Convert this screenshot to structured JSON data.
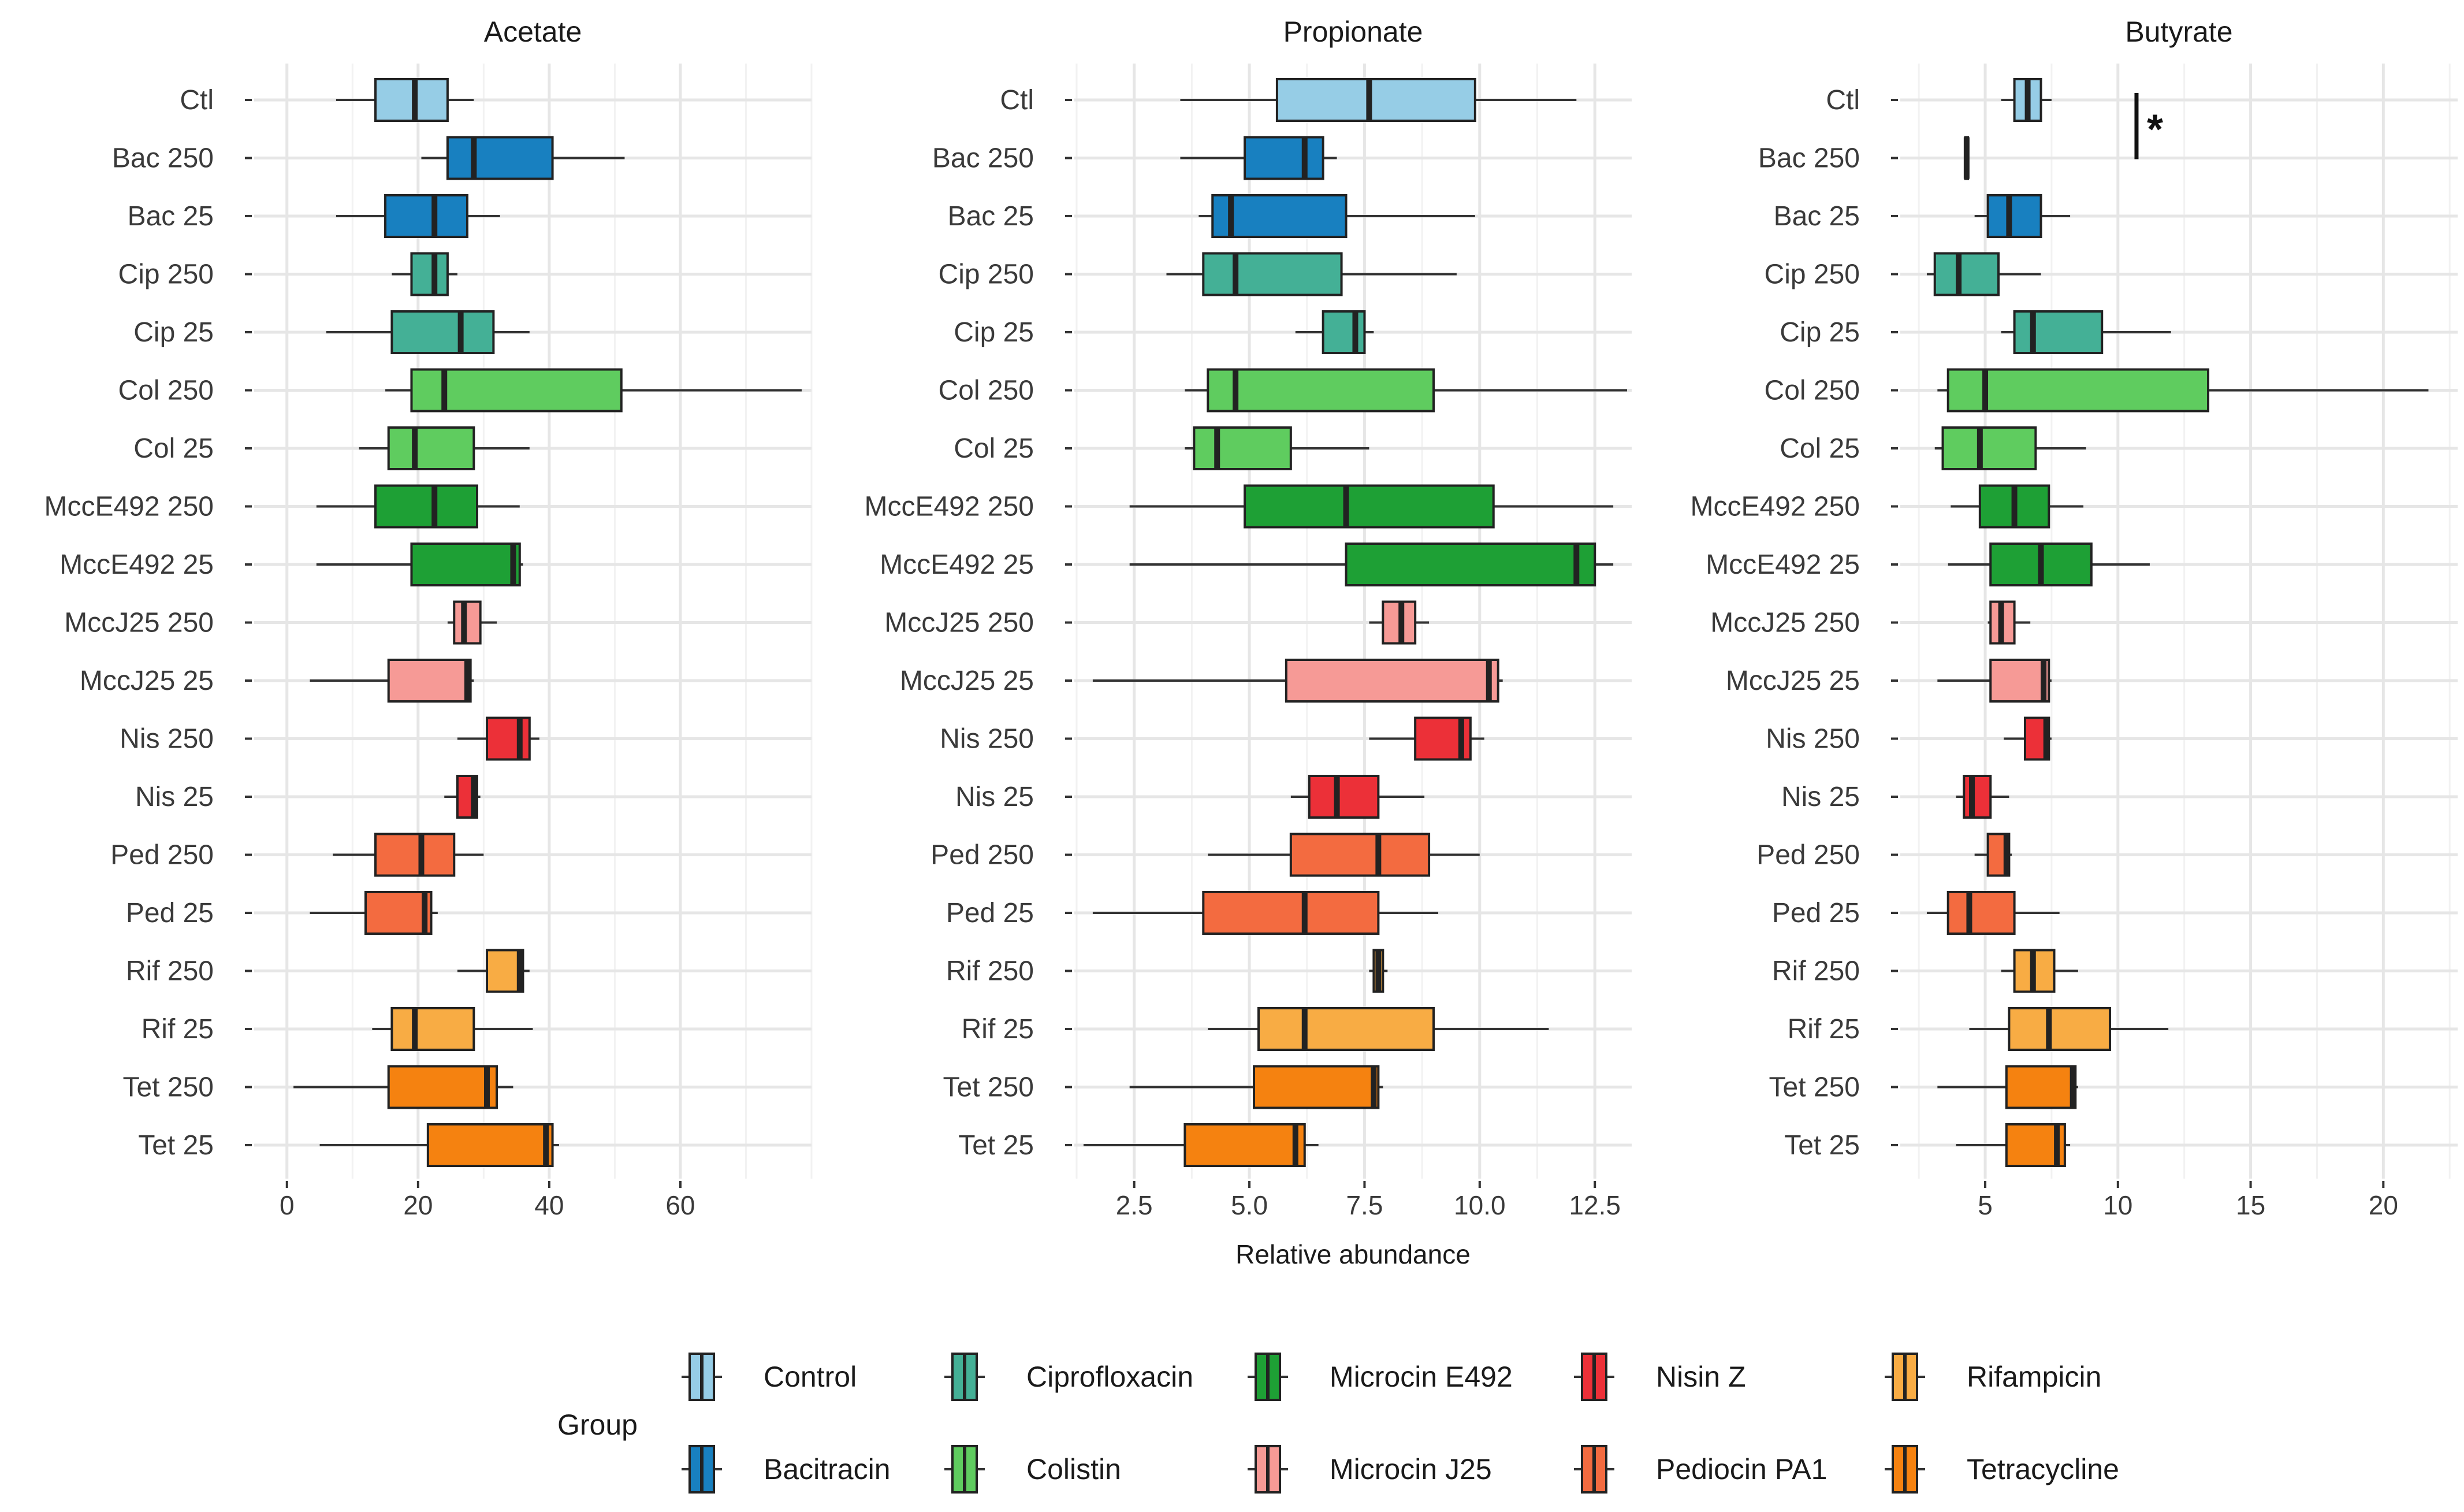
{
  "chart_data": [
    {
      "type": "boxplot",
      "title": "Acetate",
      "xlim": [
        -5,
        80
      ],
      "xticks": [
        0,
        20,
        40,
        60
      ],
      "xticklabels": [
        "0",
        "20",
        "40",
        "60"
      ],
      "categories": [
        "Ctl",
        "Bac 250",
        "Bac 25",
        "Cip 250",
        "Cip 25",
        "Col 250",
        "Col 25",
        "MccE492 250",
        "MccE492 25",
        "MccJ25 250",
        "MccJ25 25",
        "Nis 250",
        "Nis 25",
        "Ped 250",
        "Ped 25",
        "Rif 250",
        "Rif 25",
        "Tet 250",
        "Tet 25"
      ],
      "groups": [
        "Control",
        "Bacitracin",
        "Bacitracin",
        "Ciprofloxacin",
        "Ciprofloxacin",
        "Colistin",
        "Colistin",
        "Microcin E492",
        "Microcin E492",
        "Microcin J25",
        "Microcin J25",
        "Nisin Z",
        "Nisin Z",
        "Pediocin PA1",
        "Pediocin PA1",
        "Rifampicin",
        "Rifampicin",
        "Tetracycline",
        "Tetracycline"
      ],
      "boxes": [
        {
          "min": 7.5,
          "q1": 13.5,
          "median": 19.5,
          "q3": 24.5,
          "max": 28.5
        },
        {
          "min": 20.5,
          "q1": 24.5,
          "median": 28.5,
          "q3": 40.5,
          "max": 51.5
        },
        {
          "min": 7.5,
          "q1": 15,
          "median": 22.5,
          "q3": 27.5,
          "max": 32.5
        },
        {
          "min": 16,
          "q1": 19,
          "median": 22.5,
          "q3": 24.5,
          "max": 26
        },
        {
          "min": 6,
          "q1": 16,
          "median": 26.5,
          "q3": 31.5,
          "max": 37
        },
        {
          "min": 15,
          "q1": 19,
          "median": 24,
          "q3": 51,
          "max": 78.5
        },
        {
          "min": 11,
          "q1": 15.5,
          "median": 19.5,
          "q3": 28.5,
          "max": 37
        },
        {
          "min": 4.5,
          "q1": 13.5,
          "median": 22.5,
          "q3": 29,
          "max": 35.5
        },
        {
          "min": 4.5,
          "q1": 19,
          "median": 34.5,
          "q3": 35.5,
          "max": 36
        },
        {
          "min": 24.5,
          "q1": 25.5,
          "median": 27,
          "q3": 29.5,
          "max": 32
        },
        {
          "min": 3.5,
          "q1": 15.5,
          "median": 27.5,
          "q3": 28,
          "max": 28.5
        },
        {
          "min": 26,
          "q1": 30.5,
          "median": 35.5,
          "q3": 37,
          "max": 38.5
        },
        {
          "min": 24,
          "q1": 26,
          "median": 28.5,
          "q3": 29,
          "max": 29.5
        },
        {
          "min": 7,
          "q1": 13.5,
          "median": 20.5,
          "q3": 25.5,
          "max": 30
        },
        {
          "min": 3.5,
          "q1": 12,
          "median": 21,
          "q3": 22,
          "max": 23
        },
        {
          "min": 26,
          "q1": 30.5,
          "median": 35.5,
          "q3": 36,
          "max": 37
        },
        {
          "min": 13,
          "q1": 16,
          "median": 19.5,
          "q3": 28.5,
          "max": 37.5
        },
        {
          "min": 1,
          "q1": 15.5,
          "median": 30.5,
          "q3": 32,
          "max": 34.5
        },
        {
          "min": 5,
          "q1": 21.5,
          "median": 39.5,
          "q3": 40.5,
          "max": 41.5
        }
      ]
    },
    {
      "type": "boxplot",
      "title": "Propionate",
      "xlabel": "Relative abundance",
      "xlim": [
        1.2,
        13.3
      ],
      "xticks": [
        2.5,
        5.0,
        7.5,
        10.0,
        12.5
      ],
      "xticklabels": [
        "2.5",
        "5.0",
        "7.5",
        "10.0",
        "12.5"
      ],
      "categories": [
        "Ctl",
        "Bac 250",
        "Bac 25",
        "Cip 250",
        "Cip 25",
        "Col 250",
        "Col 25",
        "MccE492 250",
        "MccE492 25",
        "MccJ25 250",
        "MccJ25 25",
        "Nis 250",
        "Nis 25",
        "Ped 250",
        "Ped 25",
        "Rif 250",
        "Rif 25",
        "Tet 250",
        "Tet 25"
      ],
      "groups": [
        "Control",
        "Bacitracin",
        "Bacitracin",
        "Ciprofloxacin",
        "Ciprofloxacin",
        "Colistin",
        "Colistin",
        "Microcin E492",
        "Microcin E492",
        "Microcin J25",
        "Microcin J25",
        "Nisin Z",
        "Nisin Z",
        "Pediocin PA1",
        "Pediocin PA1",
        "Rifampicin",
        "Rifampicin",
        "Tetracycline",
        "Tetracycline"
      ],
      "boxes": [
        {
          "min": 3.5,
          "q1": 5.6,
          "median": 7.6,
          "q3": 9.9,
          "max": 12.1
        },
        {
          "min": 3.5,
          "q1": 4.9,
          "median": 6.2,
          "q3": 6.6,
          "max": 6.9
        },
        {
          "min": 3.9,
          "q1": 4.2,
          "median": 4.6,
          "q3": 7.1,
          "max": 9.9
        },
        {
          "min": 3.2,
          "q1": 4.0,
          "median": 4.7,
          "q3": 7.0,
          "max": 9.5
        },
        {
          "min": 6.0,
          "q1": 6.6,
          "median": 7.3,
          "q3": 7.5,
          "max": 7.7
        },
        {
          "min": 3.6,
          "q1": 4.1,
          "median": 4.7,
          "q3": 9.0,
          "max": 13.2
        },
        {
          "min": 3.6,
          "q1": 3.8,
          "median": 4.3,
          "q3": 5.9,
          "max": 7.6
        },
        {
          "min": 2.4,
          "q1": 4.9,
          "median": 7.1,
          "q3": 10.3,
          "max": 12.9
        },
        {
          "min": 2.4,
          "q1": 7.1,
          "median": 12.1,
          "q3": 12.5,
          "max": 12.9
        },
        {
          "min": 7.6,
          "q1": 7.9,
          "median": 8.3,
          "q3": 8.6,
          "max": 8.9
        },
        {
          "min": 1.6,
          "q1": 5.8,
          "median": 10.2,
          "q3": 10.4,
          "max": 10.5
        },
        {
          "min": 7.6,
          "q1": 8.6,
          "median": 9.6,
          "q3": 9.8,
          "max": 10.1
        },
        {
          "min": 5.9,
          "q1": 6.3,
          "median": 6.9,
          "q3": 7.8,
          "max": 8.8
        },
        {
          "min": 4.1,
          "q1": 5.9,
          "median": 7.8,
          "q3": 8.9,
          "max": 10.0
        },
        {
          "min": 1.6,
          "q1": 4.0,
          "median": 6.2,
          "q3": 7.8,
          "max": 9.1
        },
        {
          "min": 7.6,
          "q1": 7.7,
          "median": 7.8,
          "q3": 7.9,
          "max": 8.0
        },
        {
          "min": 4.1,
          "q1": 5.2,
          "median": 6.2,
          "q3": 9.0,
          "max": 11.5
        },
        {
          "min": 2.4,
          "q1": 5.1,
          "median": 7.7,
          "q3": 7.8,
          "max": 7.9
        },
        {
          "min": 1.4,
          "q1": 3.6,
          "median": 6.0,
          "q3": 6.2,
          "max": 6.5
        }
      ]
    },
    {
      "type": "boxplot",
      "title": "Butyrate",
      "xlim": [
        1.8,
        22.8
      ],
      "xticks": [
        5,
        10,
        15,
        20
      ],
      "xticklabels": [
        "5",
        "10",
        "15",
        "20"
      ],
      "categories": [
        "Ctl",
        "Bac 250",
        "Bac 25",
        "Cip 250",
        "Cip 25",
        "Col 250",
        "Col 25",
        "MccE492 250",
        "MccE492 25",
        "MccJ25 250",
        "MccJ25 25",
        "Nis 250",
        "Nis 25",
        "Ped 250",
        "Ped 25",
        "Rif 250",
        "Rif 25",
        "Tet 250",
        "Tet 25"
      ],
      "groups": [
        "Control",
        "Bacitracin",
        "Bacitracin",
        "Ciprofloxacin",
        "Ciprofloxacin",
        "Colistin",
        "Colistin",
        "Microcin E492",
        "Microcin E492",
        "Microcin J25",
        "Microcin J25",
        "Nisin Z",
        "Nisin Z",
        "Pediocin PA1",
        "Pediocin PA1",
        "Rifampicin",
        "Rifampicin",
        "Tetracycline",
        "Tetracycline"
      ],
      "boxes": [
        {
          "min": 5.6,
          "q1": 6.1,
          "median": 6.6,
          "q3": 7.1,
          "max": 7.5
        },
        {
          "min": 4.2,
          "q1": 4.25,
          "median": 4.3,
          "q3": 4.35,
          "max": 4.4
        },
        {
          "min": 4.6,
          "q1": 5.1,
          "median": 5.9,
          "q3": 7.1,
          "max": 8.2
        },
        {
          "min": 2.8,
          "q1": 3.1,
          "median": 4.0,
          "q3": 5.5,
          "max": 7.1
        },
        {
          "min": 5.6,
          "q1": 6.1,
          "median": 6.8,
          "q3": 9.4,
          "max": 12.0
        },
        {
          "min": 3.2,
          "q1": 3.6,
          "median": 5.0,
          "q3": 13.4,
          "max": 21.7
        },
        {
          "min": 3.1,
          "q1": 3.4,
          "median": 4.8,
          "q3": 6.9,
          "max": 8.8
        },
        {
          "min": 3.7,
          "q1": 4.8,
          "median": 6.1,
          "q3": 7.4,
          "max": 8.7
        },
        {
          "min": 3.6,
          "q1": 5.2,
          "median": 7.1,
          "q3": 9.0,
          "max": 11.2
        },
        {
          "min": 5.1,
          "q1": 5.2,
          "median": 5.6,
          "q3": 6.1,
          "max": 6.7
        },
        {
          "min": 3.2,
          "q1": 5.2,
          "median": 7.2,
          "q3": 7.4,
          "max": 7.5
        },
        {
          "min": 5.7,
          "q1": 6.5,
          "median": 7.3,
          "q3": 7.4,
          "max": 7.5
        },
        {
          "min": 3.9,
          "q1": 4.2,
          "median": 4.5,
          "q3": 5.2,
          "max": 5.9
        },
        {
          "min": 4.6,
          "q1": 5.1,
          "median": 5.8,
          "q3": 5.9,
          "max": 6.0
        },
        {
          "min": 2.8,
          "q1": 3.6,
          "median": 4.4,
          "q3": 6.1,
          "max": 7.8
        },
        {
          "min": 5.6,
          "q1": 6.1,
          "median": 6.8,
          "q3": 7.6,
          "max": 8.5
        },
        {
          "min": 4.4,
          "q1": 5.9,
          "median": 7.4,
          "q3": 9.7,
          "max": 11.9
        },
        {
          "min": 3.2,
          "q1": 5.8,
          "median": 8.3,
          "q3": 8.4,
          "max": 8.5
        },
        {
          "min": 3.9,
          "q1": 5.8,
          "median": 7.7,
          "q3": 8.0,
          "max": 8.2
        }
      ],
      "annotations": [
        {
          "text": "*",
          "type": "significance",
          "x": 10.7,
          "rows": [
            0,
            1
          ]
        }
      ]
    }
  ],
  "legend": {
    "title": "Group",
    "position": "bottom",
    "items": [
      {
        "label": "Control",
        "color": "#96cde6"
      },
      {
        "label": "Bacitracin",
        "color": "#1880c0"
      },
      {
        "label": "Ciprofloxacin",
        "color": "#44b096"
      },
      {
        "label": "Colistin",
        "color": "#5fcc5f"
      },
      {
        "label": "Microcin E492",
        "color": "#1ea035"
      },
      {
        "label": "Microcin J25",
        "color": "#f69a96"
      },
      {
        "label": "Nisin Z",
        "color": "#ec3038"
      },
      {
        "label": "Pediocin PA1",
        "color": "#f36b40"
      },
      {
        "label": "Rifampicin",
        "color": "#f8ac44"
      },
      {
        "label": "Tetracycline",
        "color": "#f58210"
      }
    ]
  }
}
